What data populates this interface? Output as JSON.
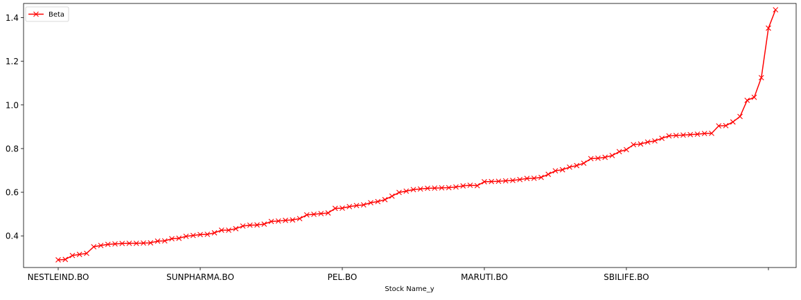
{
  "chart_data": {
    "type": "line",
    "title": "",
    "xlabel": "Stock Name_y",
    "ylabel": "",
    "ylim": [
      0.255,
      1.465
    ],
    "yticks": [
      "0.4",
      "0.6",
      "0.8",
      "1.0",
      "1.2",
      "1.4"
    ],
    "xtick_labels": [
      "NESTLEIND.BO",
      "SUNPHARMA.BO",
      "PEL.BO",
      "MARUTI.BO",
      "SBILIFE.BO",
      ""
    ],
    "xtick_positions": [
      0,
      20,
      40,
      60,
      80,
      100
    ],
    "grid": false,
    "legend": {
      "position": "top-left",
      "entries": [
        {
          "label": "Beta"
        }
      ]
    },
    "series": [
      {
        "name": "Beta",
        "color": "#ff0000",
        "marker": "x",
        "values": [
          0.29,
          0.292,
          0.31,
          0.315,
          0.32,
          0.35,
          0.356,
          0.361,
          0.363,
          0.365,
          0.366,
          0.366,
          0.367,
          0.368,
          0.376,
          0.377,
          0.387,
          0.389,
          0.398,
          0.402,
          0.406,
          0.407,
          0.414,
          0.426,
          0.426,
          0.433,
          0.445,
          0.449,
          0.45,
          0.454,
          0.466,
          0.468,
          0.471,
          0.473,
          0.479,
          0.496,
          0.499,
          0.502,
          0.505,
          0.526,
          0.527,
          0.534,
          0.539,
          0.542,
          0.552,
          0.557,
          0.566,
          0.582,
          0.599,
          0.605,
          0.612,
          0.615,
          0.618,
          0.619,
          0.62,
          0.621,
          0.624,
          0.629,
          0.632,
          0.63,
          0.648,
          0.649,
          0.65,
          0.652,
          0.654,
          0.658,
          0.663,
          0.664,
          0.668,
          0.682,
          0.698,
          0.703,
          0.715,
          0.722,
          0.733,
          0.754,
          0.756,
          0.76,
          0.768,
          0.786,
          0.795,
          0.818,
          0.821,
          0.83,
          0.835,
          0.847,
          0.858,
          0.86,
          0.862,
          0.864,
          0.866,
          0.869,
          0.87,
          0.904,
          0.905,
          0.922,
          0.947,
          1.021,
          1.035,
          1.125,
          1.352,
          1.436
        ]
      }
    ]
  }
}
